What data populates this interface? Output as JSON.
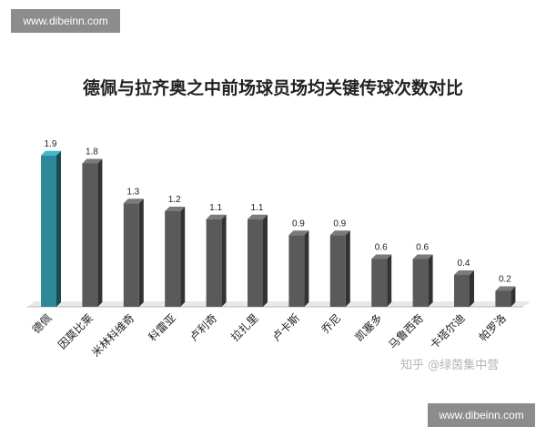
{
  "watermarks": {
    "top": "www.dibeinn.com",
    "bottom": "www.dibeinn.com"
  },
  "credit": "知乎 @绿茵集中营",
  "colors": {
    "highlight": "#2e8898",
    "bar": "#5a5a5a",
    "floor": "#e8e8e8"
  },
  "chart_data": {
    "type": "bar",
    "title": "德佩与拉齐奥之中前场球员场均关键传球次数对比",
    "xlabel": "",
    "ylabel": "",
    "ylim": [
      0,
      2
    ],
    "grid": false,
    "categories": [
      "德佩",
      "因莫比莱",
      "米林科维奇",
      "科雷亚",
      "卢利奇",
      "拉扎里",
      "卢卡斯",
      "乔尼",
      "凯塞多",
      "马鲁西奇",
      "卡塔尔迪",
      "帕罗洛"
    ],
    "values": [
      1.9,
      1.8,
      1.3,
      1.2,
      1.1,
      1.1,
      0.9,
      0.9,
      0.6,
      0.6,
      0.4,
      0.2
    ],
    "highlight_index": 0
  }
}
